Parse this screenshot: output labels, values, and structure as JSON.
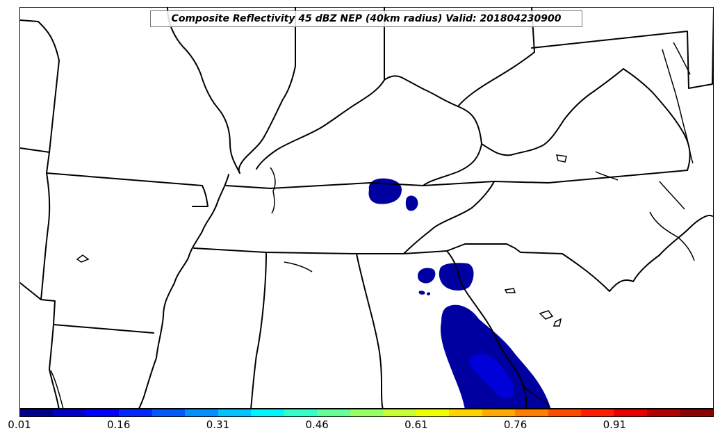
{
  "title": "Composite Reflectivity 45 dBZ NEP (40km radius) Valid: 201804230900",
  "colorbar": {
    "colors": [
      "#00008b",
      "#0000c8",
      "#0000ff",
      "#0028ff",
      "#005aff",
      "#0090ff",
      "#00c3ff",
      "#00f5ff",
      "#32ffc8",
      "#64ff96",
      "#96ff64",
      "#c8ff32",
      "#f0ff00",
      "#ffd200",
      "#ffaa00",
      "#ff7d00",
      "#ff4b00",
      "#ff1e00",
      "#e60000",
      "#b40000",
      "#8b0000"
    ],
    "ticks": [
      "0.01",
      "0.16",
      "0.31",
      "0.46",
      "0.61",
      "0.76",
      "0.91"
    ]
  }
}
